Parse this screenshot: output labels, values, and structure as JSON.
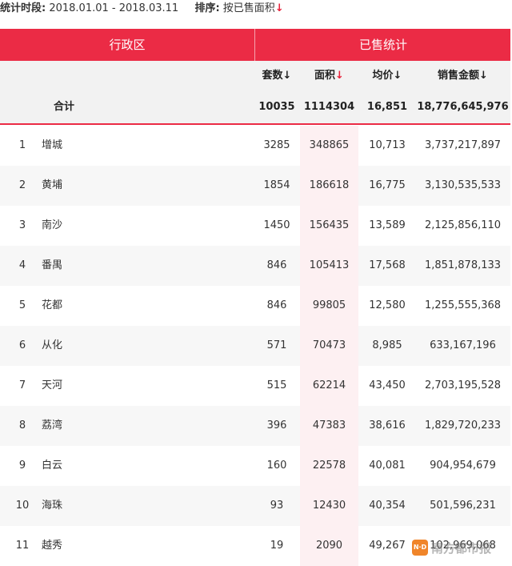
{
  "filter": {
    "period_label": "统计时段:",
    "period_value": "2018.01.01 - 2018.03.11",
    "sort_label": "排序:",
    "sort_value": "按已售面积",
    "sort_arrow": "↓"
  },
  "header": {
    "left": "行政区",
    "right": "已售统计"
  },
  "subheader": {
    "units": "套数",
    "area": "面积",
    "price": "均价",
    "amount": "销售金额",
    "arrow": "↓"
  },
  "total": {
    "label": "合计",
    "units": "10035",
    "area": "1114304",
    "price": "16,851",
    "amount": "18,776,645,976"
  },
  "rows": [
    {
      "rank": "1",
      "name": "增城",
      "units": "3285",
      "area": "348865",
      "price": "10,713",
      "amount": "3,737,217,897"
    },
    {
      "rank": "2",
      "name": "黄埔",
      "units": "1854",
      "area": "186618",
      "price": "16,775",
      "amount": "3,130,535,533"
    },
    {
      "rank": "3",
      "name": "南沙",
      "units": "1450",
      "area": "156435",
      "price": "13,589",
      "amount": "2,125,856,110"
    },
    {
      "rank": "4",
      "name": "番禺",
      "units": "846",
      "area": "105413",
      "price": "17,568",
      "amount": "1,851,878,133"
    },
    {
      "rank": "5",
      "name": "花都",
      "units": "846",
      "area": "99805",
      "price": "12,580",
      "amount": "1,255,555,368"
    },
    {
      "rank": "6",
      "name": "从化",
      "units": "571",
      "area": "70473",
      "price": "8,985",
      "amount": "633,167,196"
    },
    {
      "rank": "7",
      "name": "天河",
      "units": "515",
      "area": "62214",
      "price": "43,450",
      "amount": "2,703,195,528"
    },
    {
      "rank": "8",
      "name": "荔湾",
      "units": "396",
      "area": "47383",
      "price": "38,616",
      "amount": "1,829,720,233"
    },
    {
      "rank": "9",
      "name": "白云",
      "units": "160",
      "area": "22578",
      "price": "40,081",
      "amount": "904,954,679"
    },
    {
      "rank": "10",
      "name": "海珠",
      "units": "93",
      "area": "12430",
      "price": "40,354",
      "amount": "501,596,231"
    },
    {
      "rank": "11",
      "name": "越秀",
      "units": "19",
      "area": "2090",
      "price": "49,267",
      "amount": "102,969,068"
    }
  ],
  "watermark": {
    "logo": "N·D",
    "text": "南方都市报"
  }
}
